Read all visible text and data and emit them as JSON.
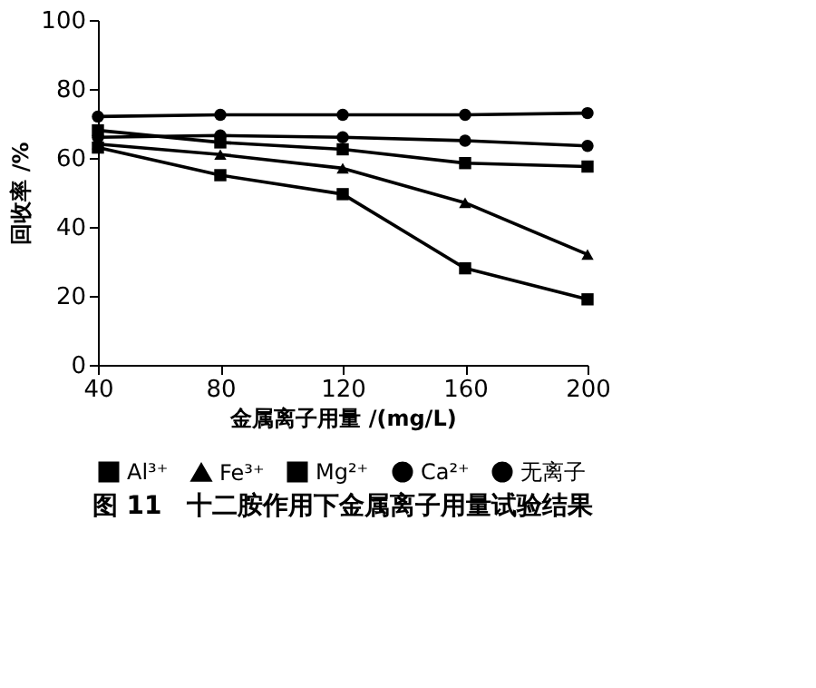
{
  "chart_data": {
    "type": "line",
    "title": "图 11　十二胺作用下金属离子用量试验结果",
    "xlabel": "金属离子用量 /(mg/L)",
    "ylabel": "回收率 /%",
    "x": [
      40,
      80,
      120,
      160,
      200
    ],
    "series": [
      {
        "name": "Al³⁺",
        "color": "#000000",
        "marker": "square",
        "values": [
          63,
          55,
          49.5,
          28,
          19
        ]
      },
      {
        "name": "Fe³⁺",
        "color": "#000000",
        "marker": "triangle",
        "values": [
          64,
          61,
          57,
          47,
          32
        ]
      },
      {
        "name": "Mg²⁺",
        "color": "#000000",
        "marker": "square",
        "values": [
          68,
          64.5,
          62.5,
          58.5,
          57.5
        ]
      },
      {
        "name": "Ca²⁺",
        "color": "#000000",
        "marker": "circle",
        "values": [
          66,
          66.5,
          66,
          65,
          63.5
        ]
      },
      {
        "name": "无离子",
        "color": "#000000",
        "marker": "circle",
        "values": [
          72,
          72.5,
          72.5,
          72.5,
          73
        ]
      }
    ],
    "xlim": [
      40,
      200
    ],
    "xticks": [
      40,
      80,
      120,
      160,
      200
    ],
    "ylim": [
      0,
      100
    ],
    "yticks": [
      0,
      20,
      40,
      60,
      80,
      100
    ],
    "grid": false,
    "legend": "bottom",
    "line_style": "solid"
  }
}
